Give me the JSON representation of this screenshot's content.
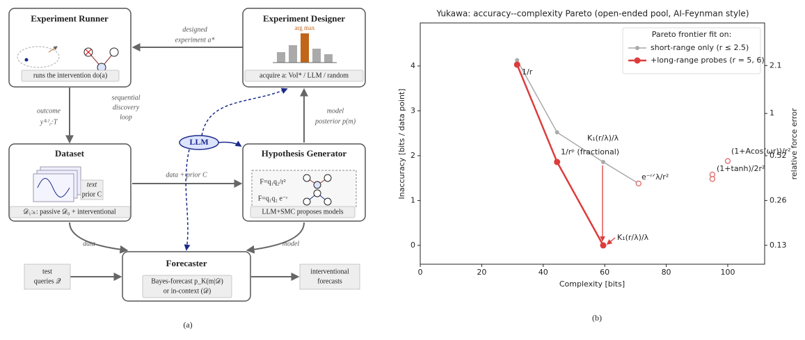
{
  "diagram": {
    "runner": {
      "title": "Experiment Runner",
      "label": "runs the intervention do(a)"
    },
    "designer": {
      "title": "Experiment Designer",
      "annotation": "arg max",
      "label": "acquire a: VoI* / LLM / random"
    },
    "dataset": {
      "title": "Dataset",
      "card": [
        "text",
        "prior C"
      ],
      "label": "𝒟₁:ₖ: passive 𝒟₀ + interventional"
    },
    "generator": {
      "title": "Hypothesis Generator",
      "equations": [
        "F=q₁q₂/r²",
        "F=q₁q₂ e⁻ʳ"
      ],
      "label": "LLM+SMC proposes models"
    },
    "forecaster": {
      "title": "Forecaster",
      "lines": [
        "Bayes-forecast p_K(m|𝒟)",
        "or in-context (𝒟)"
      ]
    },
    "queries": [
      "test",
      "queries 𝒬"
    ],
    "outputs": [
      "interventional",
      "forecasts"
    ],
    "llm": "LLM",
    "edges": {
      "designed": [
        "designed",
        "experiment a*"
      ],
      "outcome": [
        "outcome",
        "y⁽ᵏ⁾₁:T"
      ],
      "loop": [
        "sequential",
        "discovery",
        "loop"
      ],
      "posterior": [
        "model",
        "posterior p(m)"
      ],
      "data_prior": "data + prior C",
      "data": "data",
      "model": "model"
    },
    "caption": "(a)"
  },
  "chart_data": {
    "type": "line",
    "title": "Yukawa: accuracy--complexity Pareto (open-ended pool, AI-Feynman style)",
    "x_label": "Complexity [bits]",
    "y_label": "Inaccuracy [bits / data point]",
    "y2_label": "relative force error",
    "xlim": [
      0,
      112
    ],
    "xticks": [
      0,
      20,
      40,
      60,
      80,
      100
    ],
    "ylim": [
      -0.42,
      4.96
    ],
    "yticks": [
      0,
      1,
      2,
      3,
      4
    ],
    "y2lim": [
      0.097,
      4.06
    ],
    "y2scale": "log",
    "y2ticks": [
      0.13,
      0.26,
      0.52,
      1,
      2.1
    ],
    "legend_title": "Pareto frontier fit on:",
    "legend_position": "upper right",
    "series": [
      {
        "name": "short-range only (r ≤ 2.5)",
        "color": "#aaaaaa",
        "x": [
          31.5,
          44.5,
          59.5,
          71
        ],
        "values": [
          4.13,
          2.52,
          1.86,
          1.38
        ]
      },
      {
        "name": "+long-range probes (r = 5, 6)",
        "color": "#dd3c3c",
        "x": [
          31.5,
          44.5,
          59.5
        ],
        "values": [
          4.03,
          1.86,
          0
        ]
      }
    ],
    "candidates": {
      "color": "#e06666",
      "x": [
        71,
        95,
        95,
        100
      ],
      "values": [
        1.38,
        1.58,
        1.48,
        1.88
      ]
    },
    "annotations": [
      "1/r",
      "K₁(r/λ)/λ",
      "1/rᵖ (fractional)",
      "e⁻ʳᐟλ/r²",
      "(1+Acos(ωr))/r²",
      "(1+tanh)/2r²",
      "K₁(r/λ)/λ"
    ],
    "caption": "(b)"
  }
}
